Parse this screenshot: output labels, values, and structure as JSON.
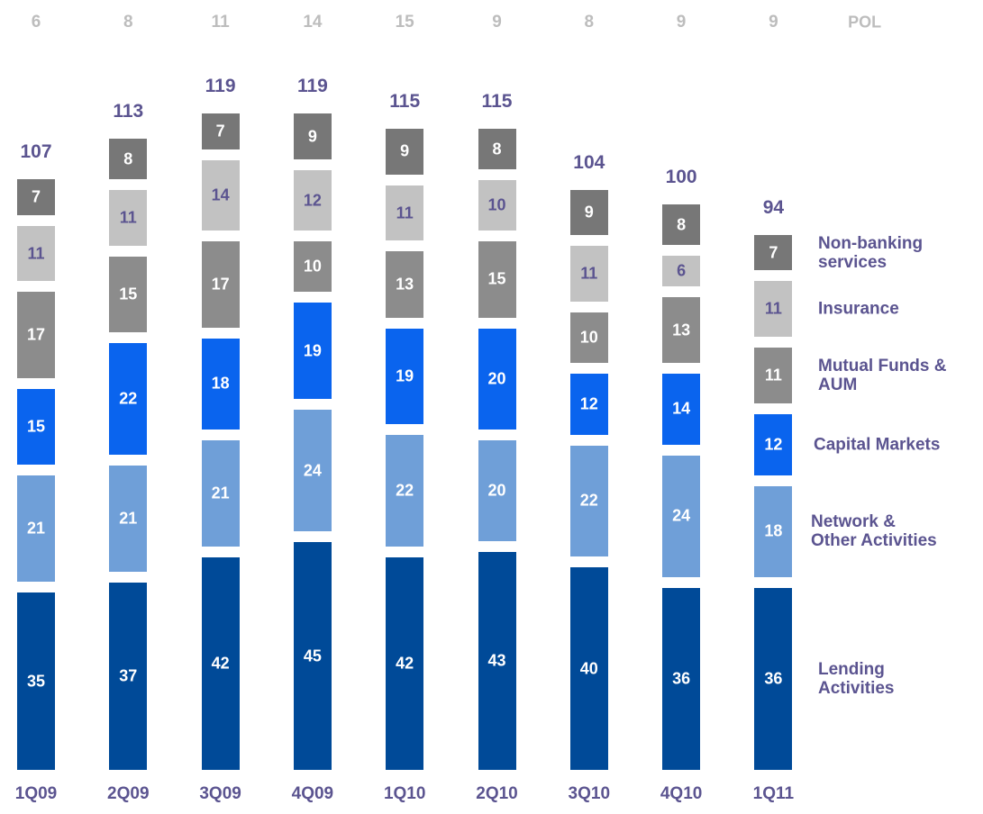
{
  "chart_data": {
    "type": "stacked_bar",
    "categories": [
      "1Q09",
      "2Q09",
      "3Q09",
      "4Q09",
      "1Q10",
      "2Q10",
      "3Q10",
      "4Q10",
      "1Q11"
    ],
    "series": [
      {
        "name": "Lending\nActivities",
        "color": "#004a98",
        "label_color": "#ffffff",
        "values": [
          35,
          37,
          42,
          45,
          42,
          43,
          40,
          36,
          36
        ]
      },
      {
        "name": "Network &\nOther Activities",
        "color": "#6f9fd8",
        "label_color": "#ffffff",
        "values": [
          21,
          21,
          21,
          24,
          22,
          20,
          22,
          24,
          18
        ]
      },
      {
        "name": "Capital Markets",
        "color": "#0a64ee",
        "label_color": "#ffffff",
        "values": [
          15,
          22,
          18,
          19,
          19,
          20,
          12,
          14,
          12
        ]
      },
      {
        "name": "Mutual Funds &\nAUM",
        "color": "#8c8c8c",
        "label_color": "#ffffff",
        "values": [
          17,
          15,
          17,
          10,
          13,
          15,
          10,
          13,
          11
        ]
      },
      {
        "name": "Insurance",
        "color": "#c2c2c2",
        "label_color": "#5b5490",
        "values": [
          11,
          11,
          14,
          12,
          11,
          10,
          11,
          6,
          11
        ]
      },
      {
        "name": "Non-banking\nservices",
        "color": "#777777",
        "label_color": "#ffffff",
        "values": [
          7,
          8,
          7,
          9,
          9,
          8,
          9,
          8,
          7
        ]
      }
    ],
    "totals": [
      107,
      113,
      119,
      119,
      115,
      115,
      104,
      100,
      94
    ],
    "pol_label": "POL",
    "pol": [
      6,
      8,
      11,
      14,
      15,
      9,
      8,
      9,
      9
    ]
  }
}
